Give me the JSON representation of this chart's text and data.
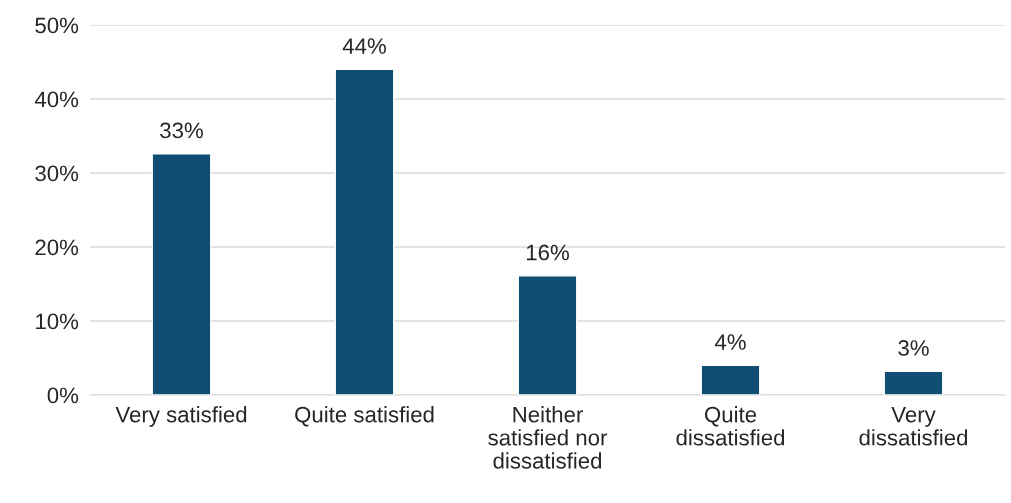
{
  "chart_data": {
    "type": "bar",
    "categories": [
      "Very satisfied",
      "Quite satisfied",
      "Neither\nsatisfied nor\ndissatisfied",
      "Quite\ndissatisfied",
      "Very\ndissatisfied"
    ],
    "values": [
      32.6,
      44,
      16.1,
      4,
      3.2
    ],
    "value_labels": [
      "33%",
      "44%",
      "16%",
      "4%",
      "3%"
    ],
    "color": "#114e73",
    "ylim": [
      0,
      50
    ],
    "yticks": [
      {
        "value": 0,
        "label": "0%"
      },
      {
        "value": 10,
        "label": "10%"
      },
      {
        "value": 20,
        "label": "20%"
      },
      {
        "value": 30,
        "label": "30%"
      },
      {
        "value": 40,
        "label": "40%"
      },
      {
        "value": 50,
        "label": "50%"
      }
    ],
    "grid": "y"
  }
}
